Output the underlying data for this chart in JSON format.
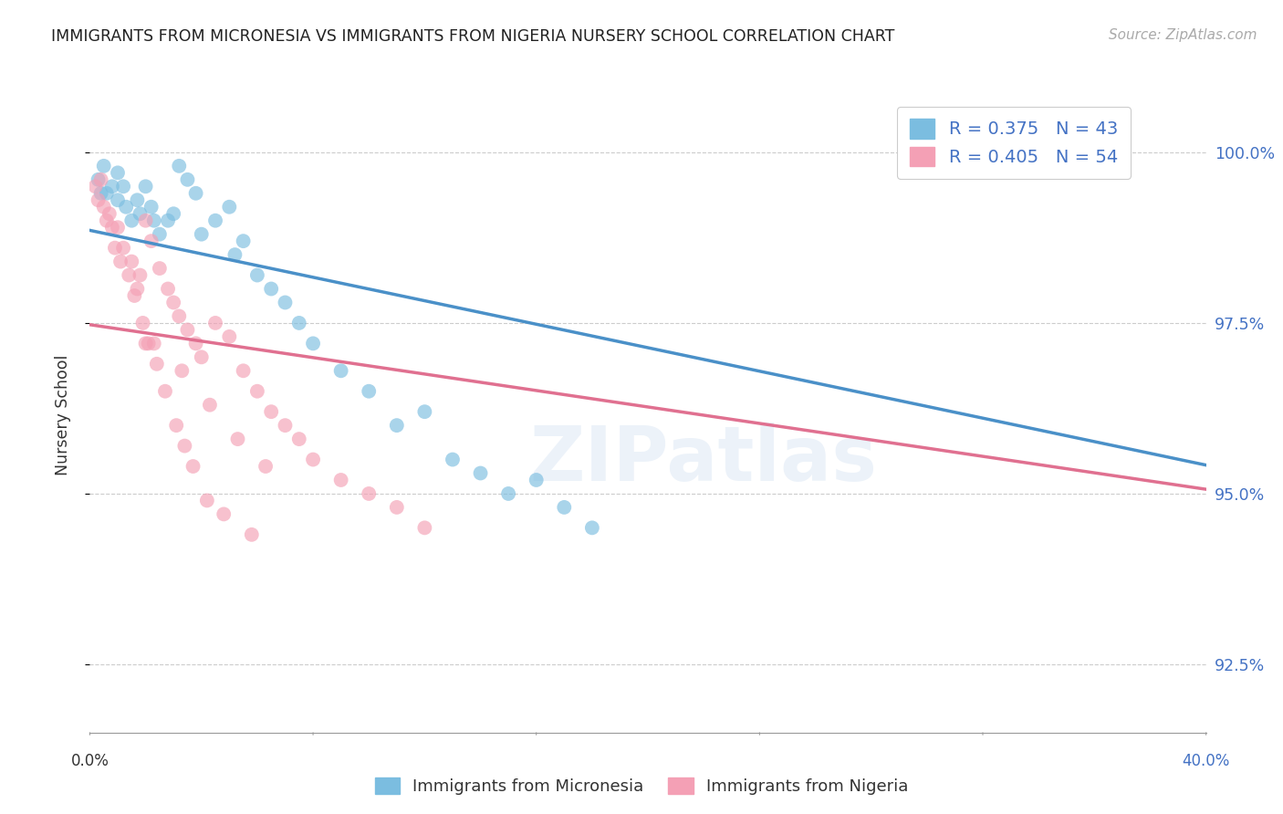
{
  "title": "IMMIGRANTS FROM MICRONESIA VS IMMIGRANTS FROM NIGERIA NURSERY SCHOOL CORRELATION CHART",
  "source": "Source: ZipAtlas.com",
  "ylabel": "Nursery School",
  "yticks": [
    92.5,
    95.0,
    97.5,
    100.0
  ],
  "ytick_labels": [
    "92.5%",
    "95.0%",
    "97.5%",
    "100.0%"
  ],
  "xmin": 0.0,
  "xmax": 40.0,
  "ymin": 91.5,
  "ymax": 100.8,
  "micronesia_R": 0.375,
  "micronesia_N": 43,
  "nigeria_R": 0.405,
  "nigeria_N": 54,
  "color_micronesia": "#7bbde0",
  "color_nigeria": "#f4a0b5",
  "line_color_micronesia": "#4a90c8",
  "line_color_nigeria": "#e07090",
  "micronesia_x": [
    0.3,
    0.5,
    0.6,
    0.8,
    1.0,
    1.0,
    1.2,
    1.3,
    1.5,
    1.7,
    1.8,
    2.0,
    2.2,
    2.3,
    2.5,
    2.8,
    3.0,
    3.2,
    3.5,
    3.8,
    4.0,
    4.5,
    5.0,
    5.2,
    5.5,
    6.0,
    6.5,
    7.0,
    7.5,
    8.0,
    9.0,
    10.0,
    11.0,
    12.0,
    13.0,
    14.0,
    15.0,
    16.0,
    17.0,
    18.0,
    0.4,
    32.0,
    36.0
  ],
  "micronesia_y": [
    99.6,
    99.8,
    99.4,
    99.5,
    99.7,
    99.3,
    99.5,
    99.2,
    99.0,
    99.3,
    99.1,
    99.5,
    99.2,
    99.0,
    98.8,
    99.0,
    99.1,
    99.8,
    99.6,
    99.4,
    98.8,
    99.0,
    99.2,
    98.5,
    98.7,
    98.2,
    98.0,
    97.8,
    97.5,
    97.2,
    96.8,
    96.5,
    96.0,
    96.2,
    95.5,
    95.3,
    95.0,
    95.2,
    94.8,
    94.5,
    99.4,
    100.1,
    100.1
  ],
  "nigeria_x": [
    0.2,
    0.3,
    0.5,
    0.6,
    0.8,
    0.9,
    1.0,
    1.1,
    1.2,
    1.4,
    1.5,
    1.6,
    1.7,
    1.8,
    1.9,
    2.0,
    2.1,
    2.2,
    2.3,
    2.4,
    2.5,
    2.7,
    2.8,
    3.0,
    3.1,
    3.2,
    3.3,
    3.4,
    3.5,
    3.7,
    3.8,
    4.0,
    4.2,
    4.3,
    4.5,
    4.8,
    5.0,
    5.3,
    5.5,
    5.8,
    6.0,
    6.3,
    6.5,
    7.0,
    7.5,
    8.0,
    9.0,
    10.0,
    11.0,
    12.0,
    0.4,
    0.7,
    2.0,
    36.0
  ],
  "nigeria_y": [
    99.5,
    99.3,
    99.2,
    99.0,
    98.9,
    98.6,
    98.9,
    98.4,
    98.6,
    98.2,
    98.4,
    97.9,
    98.0,
    98.2,
    97.5,
    99.0,
    97.2,
    98.7,
    97.2,
    96.9,
    98.3,
    96.5,
    98.0,
    97.8,
    96.0,
    97.6,
    96.8,
    95.7,
    97.4,
    95.4,
    97.2,
    97.0,
    94.9,
    96.3,
    97.5,
    94.7,
    97.3,
    95.8,
    96.8,
    94.4,
    96.5,
    95.4,
    96.2,
    96.0,
    95.8,
    95.5,
    95.2,
    95.0,
    94.8,
    94.5,
    99.6,
    99.1,
    97.2,
    100.1
  ]
}
